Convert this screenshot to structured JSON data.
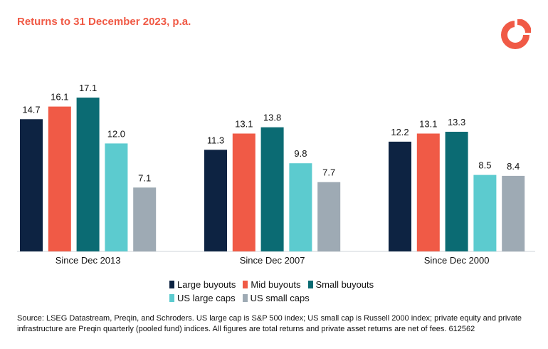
{
  "header": {
    "title": "Returns to 31 December 2023, p.a."
  },
  "logo_icon": "schroders-logo-icon",
  "colors": {
    "title": "#f05a46",
    "large_buyouts": "#0d2342",
    "mid_buyouts": "#f05a46",
    "small_buyouts": "#0b6b73",
    "us_large_caps": "#5ccbcf",
    "us_small_caps": "#9eaab4"
  },
  "chart_data": {
    "type": "bar",
    "categories": [
      "Since Dec 2013",
      "Since Dec 2007",
      "Since Dec 2000"
    ],
    "series": [
      {
        "name": "Large buyouts",
        "color": "#0d2342",
        "values": [
          14.7,
          11.3,
          12.2
        ]
      },
      {
        "name": "Mid buyouts",
        "color": "#f05a46",
        "values": [
          16.1,
          13.1,
          13.1
        ]
      },
      {
        "name": "Small buyouts",
        "color": "#0b6b73",
        "values": [
          17.1,
          13.8,
          13.3
        ]
      },
      {
        "name": "US large caps",
        "color": "#5ccbcf",
        "values": [
          12.0,
          9.8,
          8.5
        ]
      },
      {
        "name": "US small caps",
        "color": "#9eaab4",
        "values": [
          7.1,
          7.7,
          8.4
        ]
      }
    ],
    "ylim": [
      0,
      17.1
    ],
    "data_labels": true,
    "grid": false,
    "legend_position": "bottom"
  },
  "footer": {
    "source": "Source: LSEG Datastream, Preqin, and Schroders. US large cap is S&P 500 index; US small cap is Russell 2000 index; private equity and private infrastructure are Preqin quarterly (pooled fund) indices. All figures are total returns and private asset returns are net of fees. 612562"
  }
}
